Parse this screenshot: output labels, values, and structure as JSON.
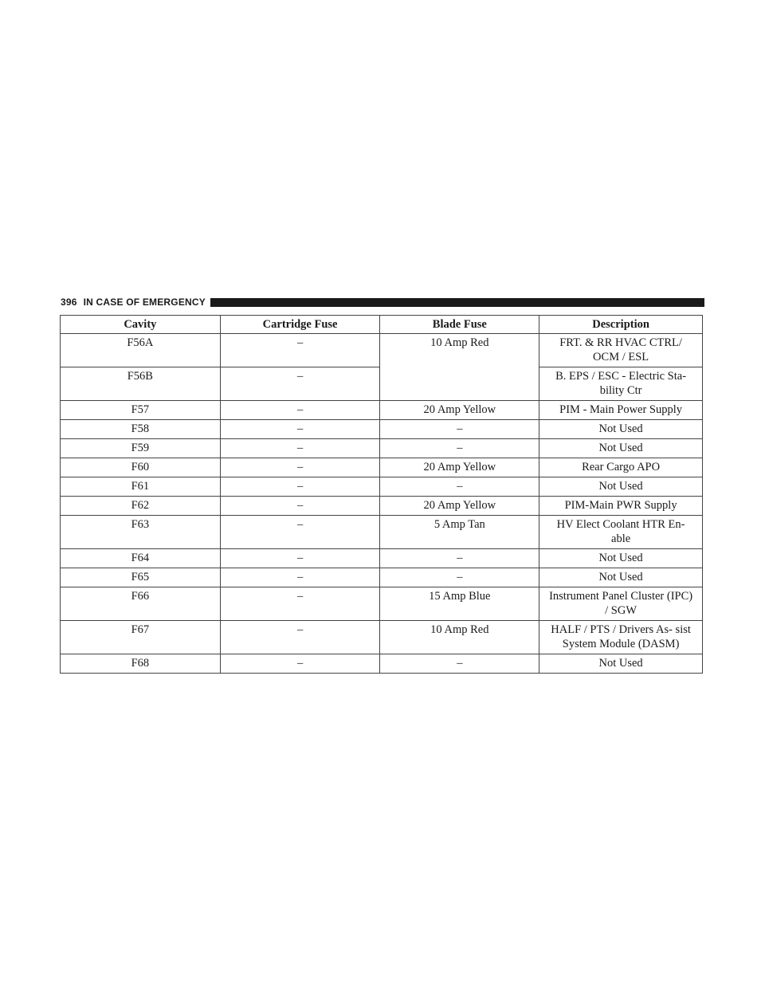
{
  "header": {
    "page_number": "396",
    "section": "IN CASE OF EMERGENCY"
  },
  "table": {
    "columns": [
      "Cavity",
      "Cartridge Fuse",
      "Blade Fuse",
      "Description"
    ],
    "rows": [
      {
        "cavity": "F56A",
        "cartridge": "–",
        "blade": "10 Amp Red",
        "description": "FRT. & RR HVAC CTRL/ OCM / ESL"
      },
      {
        "cavity": "F56B",
        "cartridge": "–",
        "blade": "",
        "description": "B. EPS / ESC - Electric Sta- bility Ctr"
      },
      {
        "cavity": "F57",
        "cartridge": "–",
        "blade": "20 Amp Yellow",
        "description": "PIM - Main Power Supply"
      },
      {
        "cavity": "F58",
        "cartridge": "–",
        "blade": "–",
        "description": "Not Used"
      },
      {
        "cavity": "F59",
        "cartridge": "–",
        "blade": "–",
        "description": "Not Used"
      },
      {
        "cavity": "F60",
        "cartridge": "–",
        "blade": "20 Amp Yellow",
        "description": "Rear Cargo APO"
      },
      {
        "cavity": "F61",
        "cartridge": "–",
        "blade": "–",
        "description": "Not Used"
      },
      {
        "cavity": "F62",
        "cartridge": "–",
        "blade": "20 Amp Yellow",
        "description": "PIM-Main PWR Supply"
      },
      {
        "cavity": "F63",
        "cartridge": "–",
        "blade": "5 Amp Tan",
        "description": "HV Elect Coolant HTR En- able"
      },
      {
        "cavity": "F64",
        "cartridge": "–",
        "blade": "–",
        "description": "Not Used"
      },
      {
        "cavity": "F65",
        "cartridge": "–",
        "blade": "–",
        "description": "Not Used"
      },
      {
        "cavity": "F66",
        "cartridge": "–",
        "blade": "15 Amp Blue",
        "description": "Instrument Panel Cluster (IPC) / SGW"
      },
      {
        "cavity": "F67",
        "cartridge": "–",
        "blade": "10 Amp Red",
        "description": "HALF / PTS / Drivers As- sist System Module (DASM)"
      },
      {
        "cavity": "F68",
        "cartridge": "–",
        "blade": "–",
        "description": "Not Used"
      }
    ]
  }
}
